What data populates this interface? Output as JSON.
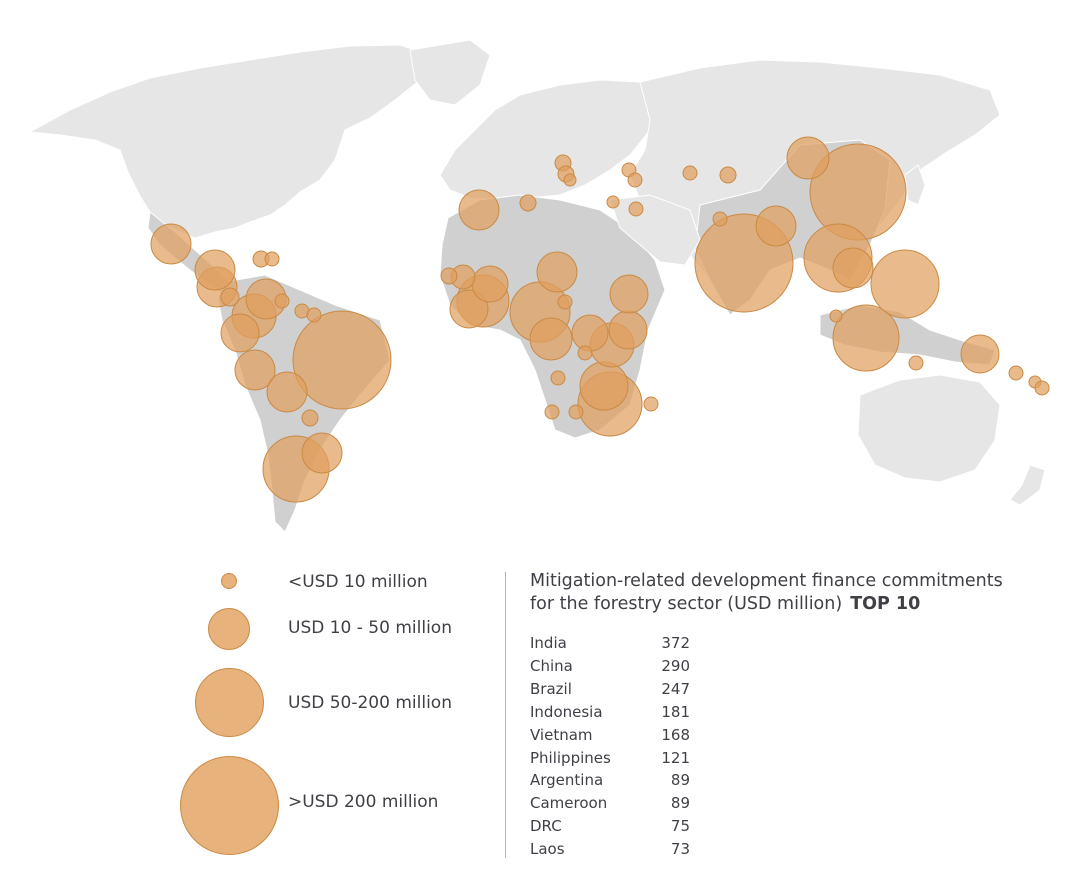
{
  "legend": [
    {
      "label": "<USD 10 million"
    },
    {
      "label": "USD 10 - 50 million"
    },
    {
      "label": "USD 50-200 million"
    },
    {
      "label": ">USD 200 million"
    }
  ],
  "panel": {
    "title_line1": "Mitigation-related development finance commitments",
    "title_line2": "for the forestry sector (USD million)",
    "title_badge": "TOP 10"
  },
  "top10": [
    {
      "country": "India",
      "value": "372"
    },
    {
      "country": "China",
      "value": "290"
    },
    {
      "country": "Brazil",
      "value": "247"
    },
    {
      "country": "Indonesia",
      "value": "181"
    },
    {
      "country": "Vietnam",
      "value": "168"
    },
    {
      "country": "Philippines",
      "value": "121"
    },
    {
      "country": "Argentina",
      "value": "89"
    },
    {
      "country": "Cameroon",
      "value": "89"
    },
    {
      "country": "DRC",
      "value": "75"
    },
    {
      "country": "Laos",
      "value": "73"
    }
  ],
  "colors": {
    "bubble": "#e0a05e",
    "land": "#e6e6e6",
    "recipient_land": "#d0d0d0"
  }
}
